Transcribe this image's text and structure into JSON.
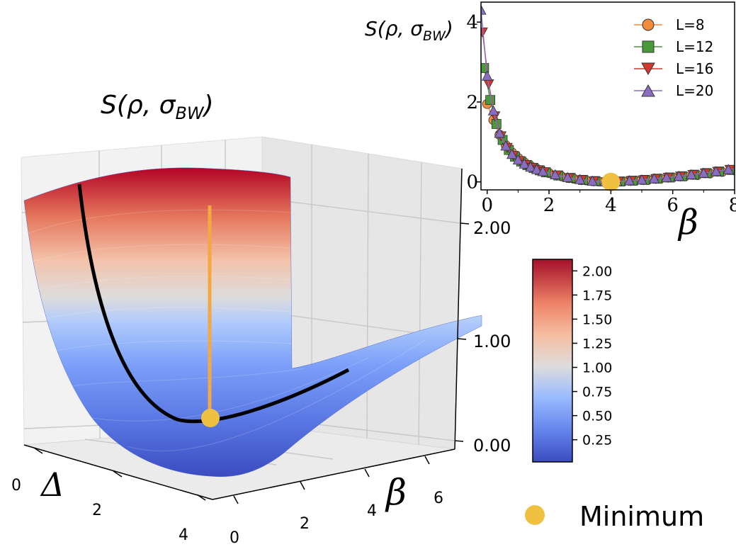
{
  "surface_plot": {
    "title": "S(ρ, σBW)",
    "title_parts": {
      "prefix": "S(ρ, σ",
      "sub": "BW",
      "suffix": ")"
    },
    "xlabel": "Δ",
    "ylabel": "β",
    "x_ticks": [
      "0",
      "2",
      "4"
    ],
    "y_ticks": [
      "0",
      "2",
      "4",
      "6"
    ],
    "z_ticks": [
      "0.00",
      "1.00",
      "2.00"
    ]
  },
  "inset_plot": {
    "ylabel_parts": {
      "prefix": "S(ρ, σ",
      "sub": "BW",
      "suffix": ")"
    },
    "xlabel": "β",
    "x_ticks": [
      "0",
      "2",
      "4",
      "6",
      "8"
    ],
    "y_ticks": [
      "0",
      "2",
      "4"
    ]
  },
  "colorbar": {
    "ticks": [
      "0.25",
      "0.50",
      "0.75",
      "1.00",
      "1.25",
      "1.50",
      "1.75",
      "2.00"
    ],
    "colors": [
      "#3b4cc0",
      "#6889ee",
      "#9abbff",
      "#c9d7f0",
      "#edd1c2",
      "#f7a889",
      "#e36a53",
      "#b40426"
    ]
  },
  "minimum_legend": {
    "label": "Minimum",
    "color": "#f0c040"
  },
  "chart_data": [
    {
      "type": "surface",
      "x_range": [
        0,
        4
      ],
      "y_range": [
        0,
        7
      ],
      "z_range": [
        0,
        2.1
      ],
      "minimum": {
        "x": 1.2,
        "y": 4,
        "z": 0
      },
      "colormap": "coolwarm"
    },
    {
      "type": "line",
      "xlim": [
        -0.2,
        8
      ],
      "ylim": [
        -0.2,
        4.5
      ],
      "legend_position": "top-right",
      "series": [
        {
          "name": "L=8",
          "marker": "circle",
          "color": "#f08c3c",
          "x": [
            0,
            0.2,
            0.4,
            0.6,
            0.8,
            1.0,
            1.2,
            1.4,
            1.6,
            1.8,
            2.0,
            2.4,
            2.8,
            3.2,
            3.6,
            4.0,
            4.4,
            4.8,
            5.2,
            5.6,
            6.0,
            6.4,
            6.8,
            7.2,
            7.6,
            8.0
          ],
          "y": [
            1.95,
            1.55,
            1.18,
            0.92,
            0.74,
            0.6,
            0.49,
            0.4,
            0.33,
            0.27,
            0.22,
            0.14,
            0.08,
            0.04,
            0.01,
            0.0,
            0.01,
            0.03,
            0.05,
            0.08,
            0.11,
            0.14,
            0.17,
            0.21,
            0.25,
            0.29
          ]
        },
        {
          "name": "L=12",
          "marker": "square",
          "color": "#4a9a3c",
          "x": [
            -0.1,
            0.1,
            0.3,
            0.5,
            0.7,
            0.9,
            1.1,
            1.3,
            1.5,
            1.7,
            1.9,
            2.3,
            2.7,
            3.1,
            3.5,
            3.9,
            4.3,
            4.7,
            5.1,
            5.5,
            5.9,
            6.3,
            6.7,
            7.1,
            7.5,
            7.9
          ],
          "y": [
            2.85,
            2.05,
            1.45,
            1.05,
            0.8,
            0.63,
            0.51,
            0.42,
            0.35,
            0.29,
            0.24,
            0.16,
            0.1,
            0.05,
            0.02,
            0.0,
            0.01,
            0.03,
            0.05,
            0.08,
            0.11,
            0.14,
            0.18,
            0.22,
            0.26,
            0.3
          ]
        },
        {
          "name": "L=16",
          "marker": "triangle-down",
          "color": "#d03a2e",
          "x": [
            -0.15,
            0.05,
            0.25,
            0.45,
            0.65,
            0.85,
            1.05,
            1.25,
            1.45,
            1.65,
            1.85,
            2.25,
            2.65,
            3.05,
            3.45,
            3.85,
            4.25,
            4.65,
            5.05,
            5.45,
            5.85,
            6.25,
            6.65,
            7.05,
            7.45,
            7.85
          ],
          "y": [
            3.75,
            2.45,
            1.65,
            1.15,
            0.86,
            0.66,
            0.53,
            0.43,
            0.36,
            0.3,
            0.25,
            0.17,
            0.1,
            0.05,
            0.02,
            0.0,
            0.01,
            0.03,
            0.05,
            0.08,
            0.11,
            0.14,
            0.18,
            0.22,
            0.26,
            0.31
          ]
        },
        {
          "name": "L=20",
          "marker": "triangle-up",
          "color": "#8a6cc0",
          "x": [
            -0.2,
            0.0,
            0.2,
            0.4,
            0.6,
            0.8,
            1.0,
            1.2,
            1.4,
            1.6,
            1.8,
            2.2,
            2.6,
            3.0,
            3.4,
            3.8,
            4.2,
            4.6,
            5.0,
            5.4,
            5.8,
            6.2,
            6.6,
            7.0,
            7.4,
            7.8,
            8.2
          ],
          "y": [
            4.3,
            2.65,
            1.78,
            1.22,
            0.9,
            0.69,
            0.55,
            0.45,
            0.37,
            0.31,
            0.26,
            0.18,
            0.11,
            0.06,
            0.02,
            0.0,
            0.01,
            0.03,
            0.05,
            0.08,
            0.11,
            0.14,
            0.18,
            0.22,
            0.26,
            0.31,
            0.35
          ]
        }
      ],
      "minimum": {
        "x": 4,
        "y": 0
      }
    }
  ]
}
